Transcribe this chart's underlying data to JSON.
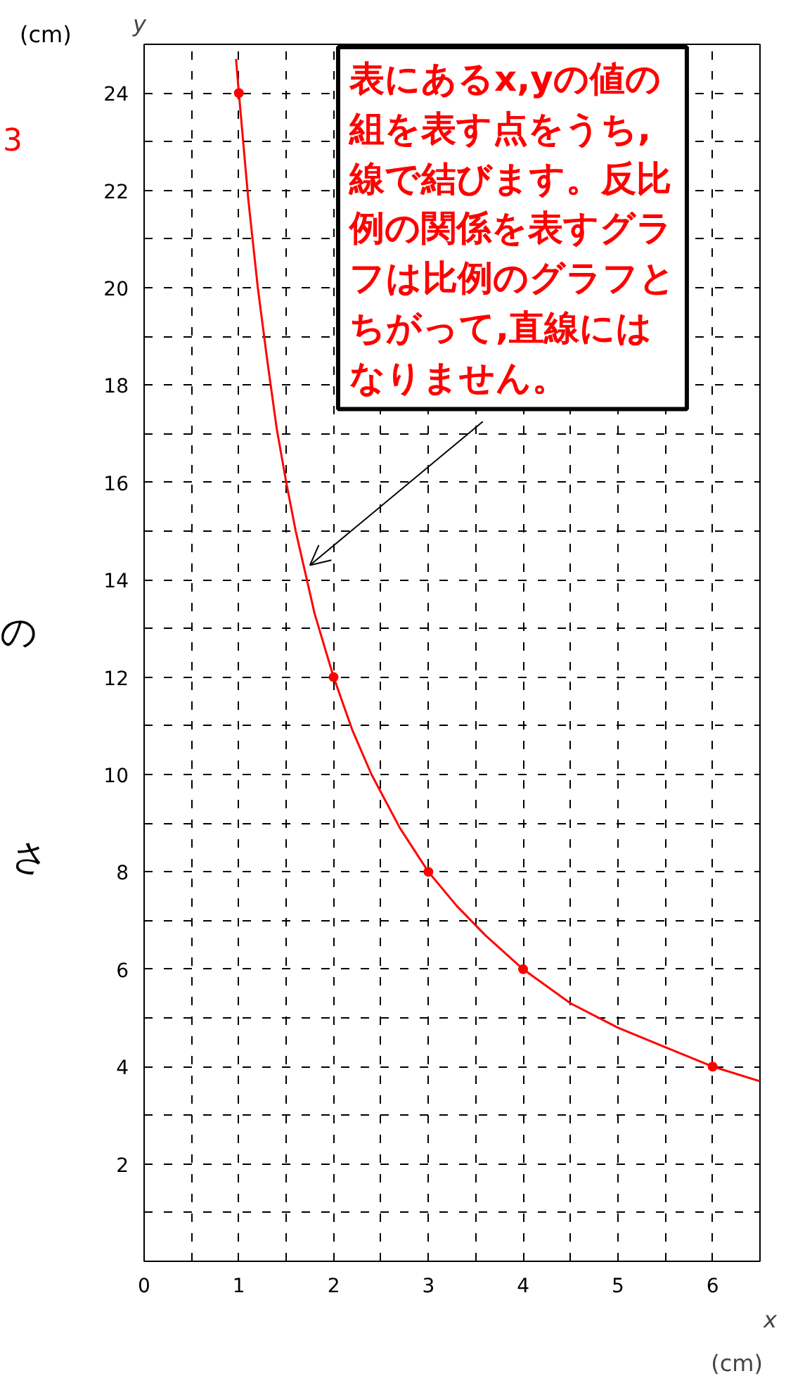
{
  "chart_data": {
    "type": "line",
    "xlabel": "x",
    "ylabel": "y",
    "xlim": [
      0,
      6.5
    ],
    "ylim": [
      0,
      25
    ],
    "xticks": [
      0,
      {
        "value": 0.5,
        "label": null
      },
      1,
      {
        "value": 1.5,
        "label": null
      },
      2,
      {
        "value": 2.5,
        "label": null
      },
      3,
      {
        "value": 3.5,
        "label": null
      },
      4,
      {
        "value": 4.5,
        "label": null
      },
      5,
      {
        "value": 5.5,
        "label": null
      },
      6
    ],
    "yticks": [
      {
        "value": 1,
        "label": null
      },
      2,
      {
        "value": 3,
        "label": null
      },
      4,
      {
        "value": 5,
        "label": null
      },
      6,
      {
        "value": 7,
        "label": null
      },
      8,
      {
        "value": 9,
        "label": null
      },
      10,
      {
        "value": 11,
        "label": null
      },
      12,
      {
        "value": 13,
        "label": null
      },
      14,
      {
        "value": 15,
        "label": null
      },
      16,
      {
        "value": 17,
        "label": null
      },
      18,
      {
        "value": 19,
        "label": null
      },
      20,
      {
        "value": 21,
        "label": null
      },
      22,
      {
        "value": 23,
        "label": null
      },
      24
    ],
    "grid": true,
    "series": [
      {
        "color": "#ff0000",
        "marker": "none",
        "x": [
          0.97,
          1,
          1.1,
          1.2,
          1.3,
          1.4,
          1.5,
          1.6,
          1.8,
          2,
          2.2,
          2.4,
          2.7,
          3,
          3.3,
          3.6,
          4,
          4.5,
          5,
          5.5,
          6,
          6.5
        ],
        "values": [
          24.7,
          24,
          21.8,
          20,
          18.5,
          17.1,
          16,
          15,
          13.3,
          12,
          10.9,
          10,
          8.9,
          8,
          7.3,
          6.7,
          6,
          5.3,
          4.8,
          4.4,
          4,
          3.7
        ]
      },
      {
        "type": "scatter",
        "color": "#ff0000",
        "marker": "circle",
        "x": [
          1,
          2,
          3,
          4,
          6
        ],
        "values": [
          24,
          12,
          8,
          6,
          4
        ]
      }
    ],
    "annotations": [
      {
        "text": "表にあるx,yの値の組を表す点をうち,線で結びます。反比例の関係を表すグラフは比例のグラフとちがって,直線にはなりません。",
        "x": 1.75,
        "y": 14.3
      },
      "(cm)",
      "(cm)",
      "3",
      "の",
      "さ"
    ]
  }
}
